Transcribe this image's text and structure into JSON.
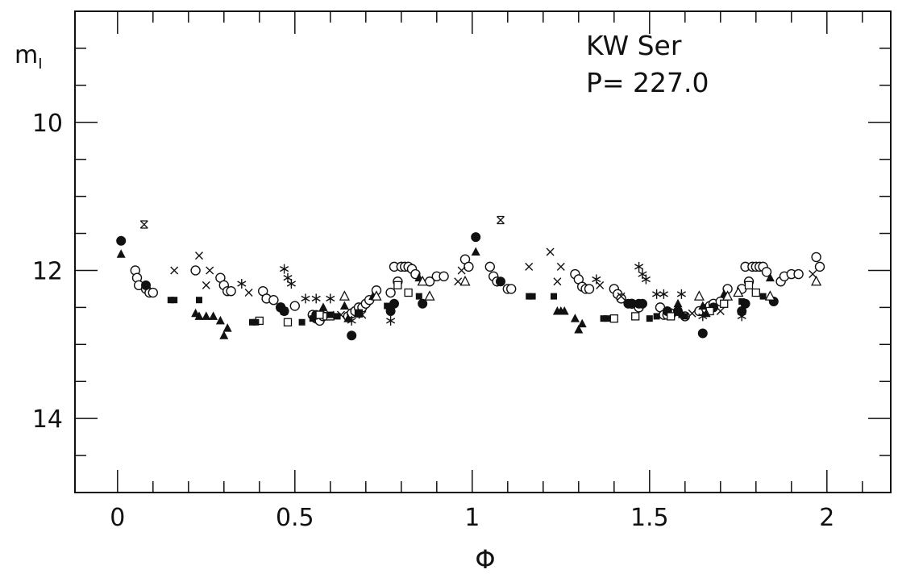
{
  "chart_data": {
    "type": "scatter",
    "title": "",
    "xlabel": "Φ",
    "ylabel_main": "m",
    "ylabel_sub": "I",
    "xlim": [
      -0.12,
      2.18
    ],
    "ylim": [
      15.0,
      8.5
    ],
    "y_inverted": true,
    "grid": false,
    "annotations": [
      "KW Ser",
      "P= 227.0"
    ],
    "x_ticks": [
      {
        "value": 0,
        "label": "0"
      },
      {
        "value": 0.5,
        "label": "0.5"
      },
      {
        "value": 1,
        "label": "1"
      },
      {
        "value": 1.5,
        "label": "1.5"
      },
      {
        "value": 2,
        "label": "2"
      }
    ],
    "y_ticks": [
      {
        "value": 10,
        "label": "10"
      },
      {
        "value": 12,
        "label": "12"
      },
      {
        "value": 14,
        "label": "14"
      }
    ],
    "series": [
      {
        "marker": "open-circle",
        "points": [
          [
            0.05,
            12.0
          ],
          [
            0.055,
            12.1
          ],
          [
            0.06,
            12.2
          ],
          [
            0.08,
            12.25
          ],
          [
            0.09,
            12.3
          ],
          [
            0.1,
            12.3
          ],
          [
            0.22,
            12.0
          ],
          [
            0.29,
            12.1
          ],
          [
            0.3,
            12.2
          ],
          [
            0.31,
            12.28
          ],
          [
            0.32,
            12.28
          ],
          [
            0.41,
            12.28
          ],
          [
            0.42,
            12.38
          ],
          [
            0.44,
            12.4
          ],
          [
            0.46,
            12.5
          ],
          [
            0.5,
            12.48
          ],
          [
            0.55,
            12.6
          ],
          [
            0.56,
            12.65
          ],
          [
            0.57,
            12.68
          ],
          [
            0.58,
            12.62
          ],
          [
            0.65,
            12.62
          ],
          [
            0.66,
            12.58
          ],
          [
            0.67,
            12.55
          ],
          [
            0.68,
            12.5
          ],
          [
            0.69,
            12.5
          ],
          [
            0.7,
            12.45
          ],
          [
            0.71,
            12.4
          ],
          [
            0.73,
            12.27
          ],
          [
            0.77,
            12.3
          ],
          [
            0.78,
            11.95
          ],
          [
            0.79,
            12.15
          ],
          [
            0.8,
            11.95
          ],
          [
            0.81,
            11.95
          ],
          [
            0.82,
            11.95
          ],
          [
            0.83,
            11.98
          ],
          [
            0.84,
            12.05
          ],
          [
            0.88,
            12.15
          ],
          [
            0.9,
            12.08
          ],
          [
            0.92,
            12.08
          ],
          [
            0.98,
            11.85
          ],
          [
            0.99,
            11.95
          ],
          [
            1.05,
            11.95
          ],
          [
            1.06,
            12.08
          ],
          [
            1.07,
            12.15
          ],
          [
            1.1,
            12.25
          ],
          [
            1.11,
            12.25
          ],
          [
            1.29,
            12.05
          ],
          [
            1.3,
            12.12
          ],
          [
            1.31,
            12.22
          ],
          [
            1.32,
            12.25
          ],
          [
            1.33,
            12.25
          ],
          [
            1.4,
            12.25
          ],
          [
            1.41,
            12.32
          ],
          [
            1.42,
            12.38
          ],
          [
            1.45,
            12.45
          ],
          [
            1.47,
            12.5
          ],
          [
            1.53,
            12.5
          ],
          [
            1.54,
            12.6
          ],
          [
            1.55,
            12.6
          ],
          [
            1.56,
            12.58
          ],
          [
            1.6,
            12.62
          ],
          [
            1.64,
            12.55
          ],
          [
            1.66,
            12.52
          ],
          [
            1.67,
            12.48
          ],
          [
            1.68,
            12.45
          ],
          [
            1.7,
            12.42
          ],
          [
            1.72,
            12.25
          ],
          [
            1.76,
            12.25
          ],
          [
            1.77,
            11.95
          ],
          [
            1.78,
            12.15
          ],
          [
            1.79,
            11.95
          ],
          [
            1.8,
            11.95
          ],
          [
            1.81,
            11.95
          ],
          [
            1.82,
            11.95
          ],
          [
            1.83,
            12.02
          ],
          [
            1.87,
            12.15
          ],
          [
            1.88,
            12.08
          ],
          [
            1.9,
            12.05
          ],
          [
            1.92,
            12.05
          ],
          [
            1.97,
            11.82
          ],
          [
            1.98,
            11.95
          ]
        ]
      },
      {
        "marker": "filled-circle",
        "points": [
          [
            0.01,
            11.6
          ],
          [
            0.08,
            12.2
          ],
          [
            0.46,
            12.5
          ],
          [
            0.47,
            12.55
          ],
          [
            0.56,
            12.6
          ],
          [
            0.66,
            12.88
          ],
          [
            0.77,
            12.55
          ],
          [
            0.78,
            12.45
          ],
          [
            0.86,
            12.45
          ],
          [
            1.01,
            11.55
          ],
          [
            1.08,
            12.15
          ],
          [
            1.44,
            12.45
          ],
          [
            1.45,
            12.45
          ],
          [
            1.47,
            12.45
          ],
          [
            1.48,
            12.45
          ],
          [
            1.55,
            12.55
          ],
          [
            1.58,
            12.55
          ],
          [
            1.65,
            12.85
          ],
          [
            1.68,
            12.5
          ],
          [
            1.76,
            12.55
          ],
          [
            1.77,
            12.45
          ],
          [
            1.85,
            12.42
          ]
        ]
      },
      {
        "marker": "open-square",
        "points": [
          [
            0.4,
            12.68
          ],
          [
            0.48,
            12.7
          ],
          [
            0.57,
            12.6
          ],
          [
            0.59,
            12.62
          ],
          [
            0.6,
            12.62
          ],
          [
            0.68,
            12.58
          ],
          [
            0.79,
            12.2
          ],
          [
            0.82,
            12.3
          ],
          [
            1.4,
            12.65
          ],
          [
            1.46,
            12.62
          ],
          [
            1.56,
            12.62
          ],
          [
            1.67,
            12.55
          ],
          [
            1.71,
            12.45
          ],
          [
            1.78,
            12.2
          ],
          [
            1.8,
            12.3
          ]
        ]
      },
      {
        "marker": "filled-square",
        "points": [
          [
            0.15,
            12.4
          ],
          [
            0.16,
            12.4
          ],
          [
            0.23,
            12.4
          ],
          [
            0.38,
            12.7
          ],
          [
            0.39,
            12.7
          ],
          [
            0.52,
            12.7
          ],
          [
            0.55,
            12.65
          ],
          [
            0.6,
            12.6
          ],
          [
            0.62,
            12.62
          ],
          [
            0.68,
            12.58
          ],
          [
            0.76,
            12.48
          ],
          [
            0.85,
            12.35
          ],
          [
            1.16,
            12.35
          ],
          [
            1.17,
            12.35
          ],
          [
            1.23,
            12.35
          ],
          [
            1.37,
            12.65
          ],
          [
            1.38,
            12.65
          ],
          [
            1.5,
            12.65
          ],
          [
            1.52,
            12.62
          ],
          [
            1.59,
            12.6
          ],
          [
            1.6,
            12.62
          ],
          [
            1.76,
            12.42
          ],
          [
            1.82,
            12.35
          ]
        ]
      },
      {
        "marker": "filled-triangle",
        "points": [
          [
            0.01,
            11.78
          ],
          [
            0.22,
            12.58
          ],
          [
            0.23,
            12.62
          ],
          [
            0.25,
            12.62
          ],
          [
            0.27,
            12.62
          ],
          [
            0.29,
            12.68
          ],
          [
            0.3,
            12.88
          ],
          [
            0.31,
            12.78
          ],
          [
            0.58,
            12.5
          ],
          [
            0.64,
            12.48
          ],
          [
            0.65,
            12.65
          ],
          [
            0.68,
            12.58
          ],
          [
            0.72,
            12.35
          ],
          [
            0.85,
            12.1
          ],
          [
            1.01,
            11.75
          ],
          [
            1.24,
            12.55
          ],
          [
            1.25,
            12.55
          ],
          [
            1.26,
            12.55
          ],
          [
            1.29,
            12.65
          ],
          [
            1.3,
            12.8
          ],
          [
            1.31,
            12.72
          ],
          [
            1.58,
            12.45
          ],
          [
            1.65,
            12.48
          ],
          [
            1.66,
            12.58
          ],
          [
            1.71,
            12.32
          ],
          [
            1.84,
            12.1
          ]
        ]
      },
      {
        "marker": "open-triangle",
        "points": [
          [
            0.64,
            12.35
          ],
          [
            0.73,
            12.35
          ],
          [
            0.86,
            12.15
          ],
          [
            0.88,
            12.35
          ],
          [
            0.98,
            12.15
          ],
          [
            1.64,
            12.35
          ],
          [
            1.72,
            12.35
          ],
          [
            1.75,
            12.3
          ],
          [
            1.84,
            12.35
          ],
          [
            1.97,
            12.15
          ]
        ]
      },
      {
        "marker": "cross",
        "points": [
          [
            0.16,
            12.0
          ],
          [
            0.23,
            11.8
          ],
          [
            0.25,
            12.2
          ],
          [
            0.26,
            12.0
          ],
          [
            0.37,
            12.3
          ],
          [
            0.46,
            12.5
          ],
          [
            0.47,
            12.55
          ],
          [
            0.6,
            12.6
          ],
          [
            0.63,
            12.6
          ],
          [
            0.69,
            12.6
          ],
          [
            0.96,
            12.15
          ],
          [
            0.97,
            12.0
          ],
          [
            1.16,
            11.95
          ],
          [
            1.22,
            11.75
          ],
          [
            1.24,
            12.15
          ],
          [
            1.25,
            11.95
          ],
          [
            1.36,
            12.2
          ],
          [
            1.42,
            12.35
          ],
          [
            1.58,
            12.58
          ],
          [
            1.62,
            12.58
          ],
          [
            1.7,
            12.55
          ],
          [
            1.96,
            12.05
          ]
        ]
      },
      {
        "marker": "asterisk",
        "points": [
          [
            0.35,
            12.18
          ],
          [
            0.47,
            11.98
          ],
          [
            0.48,
            12.1
          ],
          [
            0.49,
            12.18
          ],
          [
            0.53,
            12.38
          ],
          [
            0.56,
            12.38
          ],
          [
            0.6,
            12.38
          ],
          [
            0.66,
            12.68
          ],
          [
            0.77,
            12.68
          ],
          [
            1.35,
            12.12
          ],
          [
            1.47,
            11.95
          ],
          [
            1.48,
            12.05
          ],
          [
            1.49,
            12.12
          ],
          [
            1.52,
            12.32
          ],
          [
            1.54,
            12.32
          ],
          [
            1.59,
            12.32
          ],
          [
            1.65,
            12.62
          ],
          [
            1.76,
            12.62
          ]
        ]
      },
      {
        "marker": "star",
        "points": [
          [
            0.075,
            11.38
          ],
          [
            1.08,
            11.32
          ]
        ]
      }
    ]
  }
}
